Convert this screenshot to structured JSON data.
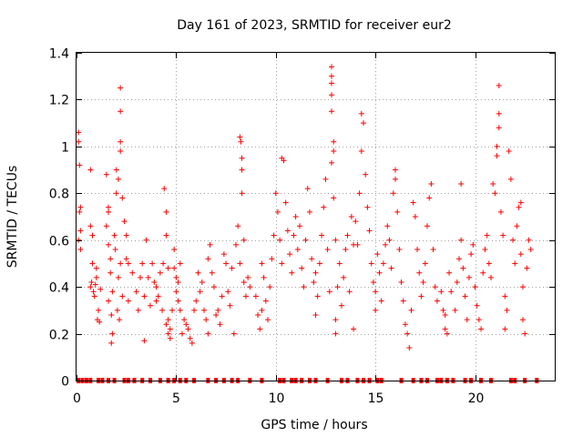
{
  "chart_data": {
    "type": "scatter",
    "title": "Day 161 of 2023, SRMTID for receiver eur2",
    "xlabel": "GPS time / hours",
    "ylabel": "SRMTID / TECUs",
    "xlim": [
      0,
      24
    ],
    "ylim": [
      0,
      1.4
    ],
    "xticks": [
      0,
      5,
      10,
      15,
      20
    ],
    "yticks": [
      0,
      0.2,
      0.4,
      0.6,
      0.8,
      1,
      1.2,
      1.4
    ],
    "grid": true,
    "marker": "+",
    "color": "#ff0000",
    "series": [
      {
        "name": "SRMTID",
        "points": [
          [
            0.1,
            1.06
          ],
          [
            0.1,
            1.02
          ],
          [
            0.15,
            0.92
          ],
          [
            0.2,
            0.74
          ],
          [
            0.15,
            0.72
          ],
          [
            0.1,
            0.6
          ],
          [
            0.2,
            0.56
          ],
          [
            0.2,
            0.64
          ],
          [
            0.7,
            0.9
          ],
          [
            0.7,
            0.66
          ],
          [
            0.8,
            0.62
          ],
          [
            0.8,
            0.5
          ],
          [
            0.75,
            0.42
          ],
          [
            0.7,
            0.4
          ],
          [
            0.85,
            0.38
          ],
          [
            0.9,
            0.36
          ],
          [
            1.0,
            0.48
          ],
          [
            1.1,
            0.3
          ],
          [
            1.05,
            0.26
          ],
          [
            1.15,
            0.25
          ],
          [
            1.0,
            0.44
          ],
          [
            0.95,
            0.41
          ],
          [
            1.2,
            0.39
          ],
          [
            1.5,
            0.88
          ],
          [
            1.6,
            0.74
          ],
          [
            1.6,
            0.72
          ],
          [
            1.5,
            0.66
          ],
          [
            1.6,
            0.58
          ],
          [
            1.7,
            0.52
          ],
          [
            1.7,
            0.46
          ],
          [
            1.8,
            0.38
          ],
          [
            1.6,
            0.34
          ],
          [
            1.75,
            0.28
          ],
          [
            1.8,
            0.2
          ],
          [
            1.75,
            0.16
          ],
          [
            1.9,
            0.62
          ],
          [
            1.95,
            0.56
          ],
          [
            2.0,
            0.9
          ],
          [
            2.1,
            0.86
          ],
          [
            2.0,
            0.8
          ],
          [
            2.2,
            1.25
          ],
          [
            2.2,
            1.15
          ],
          [
            2.2,
            1.02
          ],
          [
            2.2,
            0.98
          ],
          [
            2.2,
            0.5
          ],
          [
            2.1,
            0.44
          ],
          [
            2.3,
            0.36
          ],
          [
            2.05,
            0.3
          ],
          [
            2.15,
            0.26
          ],
          [
            2.3,
            0.78
          ],
          [
            2.4,
            0.68
          ],
          [
            2.5,
            0.62
          ],
          [
            2.5,
            0.52
          ],
          [
            2.6,
            0.5
          ],
          [
            2.6,
            0.34
          ],
          [
            2.8,
            0.46
          ],
          [
            3.0,
            0.38
          ],
          [
            3.1,
            0.3
          ],
          [
            3.2,
            0.44
          ],
          [
            3.3,
            0.5
          ],
          [
            3.4,
            0.36
          ],
          [
            3.4,
            0.17
          ],
          [
            3.5,
            0.6
          ],
          [
            3.6,
            0.44
          ],
          [
            3.7,
            0.32
          ],
          [
            3.8,
            0.5
          ],
          [
            3.9,
            0.42
          ],
          [
            4.0,
            0.4
          ],
          [
            4.0,
            0.34
          ],
          [
            4.1,
            0.36
          ],
          [
            4.2,
            0.46
          ],
          [
            4.3,
            0.3
          ],
          [
            4.35,
            0.5
          ],
          [
            4.4,
            0.82
          ],
          [
            4.5,
            0.72
          ],
          [
            4.5,
            0.62
          ],
          [
            4.6,
            0.48
          ],
          [
            4.6,
            0.26
          ],
          [
            4.5,
            0.24
          ],
          [
            4.6,
            0.2
          ],
          [
            4.7,
            0.18
          ],
          [
            4.7,
            0.22
          ],
          [
            4.8,
            0.3
          ],
          [
            4.9,
            0.56
          ],
          [
            4.9,
            0.48
          ],
          [
            5.0,
            0.44
          ],
          [
            5.0,
            0.38
          ],
          [
            5.1,
            0.42
          ],
          [
            5.1,
            0.34
          ],
          [
            5.2,
            0.5
          ],
          [
            5.2,
            0.3
          ],
          [
            5.3,
            0.2
          ],
          [
            5.4,
            0.26
          ],
          [
            5.5,
            0.24
          ],
          [
            5.6,
            0.22
          ],
          [
            5.7,
            0.18
          ],
          [
            5.8,
            0.16
          ],
          [
            5.9,
            0.3
          ],
          [
            6.0,
            0.34
          ],
          [
            6.1,
            0.46
          ],
          [
            6.2,
            0.38
          ],
          [
            6.3,
            0.42
          ],
          [
            6.4,
            0.3
          ],
          [
            6.5,
            0.26
          ],
          [
            6.6,
            0.2
          ],
          [
            6.6,
            0.52
          ],
          [
            6.7,
            0.58
          ],
          [
            6.8,
            0.46
          ],
          [
            6.9,
            0.4
          ],
          [
            7.0,
            0.28
          ],
          [
            7.1,
            0.3
          ],
          [
            7.2,
            0.24
          ],
          [
            7.3,
            0.36
          ],
          [
            7.4,
            0.54
          ],
          [
            7.5,
            0.5
          ],
          [
            7.6,
            0.38
          ],
          [
            7.7,
            0.32
          ],
          [
            7.8,
            0.48
          ],
          [
            7.9,
            0.2
          ],
          [
            8.0,
            0.58
          ],
          [
            8.1,
            0.66
          ],
          [
            8.2,
            0.5
          ],
          [
            8.2,
            1.04
          ],
          [
            8.25,
            1.02
          ],
          [
            8.3,
            0.95
          ],
          [
            8.3,
            0.9
          ],
          [
            8.3,
            0.8
          ],
          [
            8.4,
            0.6
          ],
          [
            8.4,
            0.42
          ],
          [
            8.5,
            0.36
          ],
          [
            8.6,
            0.44
          ],
          [
            8.7,
            0.4
          ],
          [
            9.0,
            0.36
          ],
          [
            9.1,
            0.28
          ],
          [
            9.2,
            0.22
          ],
          [
            9.3,
            0.3
          ],
          [
            9.3,
            0.5
          ],
          [
            9.4,
            0.44
          ],
          [
            9.5,
            0.34
          ],
          [
            9.6,
            0.26
          ],
          [
            9.7,
            0.4
          ],
          [
            9.8,
            0.52
          ],
          [
            9.9,
            0.62
          ],
          [
            10.0,
            0.8
          ],
          [
            10.1,
            0.72
          ],
          [
            10.2,
            0.6
          ],
          [
            10.3,
            0.5
          ],
          [
            10.3,
            0.95
          ],
          [
            10.4,
            0.94
          ],
          [
            10.5,
            0.76
          ],
          [
            10.6,
            0.64
          ],
          [
            10.7,
            0.54
          ],
          [
            10.8,
            0.46
          ],
          [
            10.9,
            0.62
          ],
          [
            11.0,
            0.7
          ],
          [
            11.1,
            0.56
          ],
          [
            11.2,
            0.66
          ],
          [
            11.3,
            0.48
          ],
          [
            11.4,
            0.4
          ],
          [
            11.5,
            0.6
          ],
          [
            11.6,
            0.82
          ],
          [
            11.7,
            0.72
          ],
          [
            11.8,
            0.52
          ],
          [
            11.9,
            0.42
          ],
          [
            12.0,
            0.46
          ],
          [
            12.0,
            0.28
          ],
          [
            12.1,
            0.36
          ],
          [
            12.2,
            0.5
          ],
          [
            12.3,
            0.62
          ],
          [
            12.4,
            0.74
          ],
          [
            12.5,
            0.86
          ],
          [
            12.6,
            0.56
          ],
          [
            12.7,
            0.38
          ],
          [
            12.8,
            1.34
          ],
          [
            12.8,
            1.3
          ],
          [
            12.8,
            1.27
          ],
          [
            12.8,
            1.22
          ],
          [
            12.8,
            1.15
          ],
          [
            12.8,
            0.93
          ],
          [
            12.9,
            1.02
          ],
          [
            12.9,
            0.98
          ],
          [
            12.9,
            0.78
          ],
          [
            13.0,
            0.6
          ],
          [
            13.0,
            0.26
          ],
          [
            13.0,
            0.2
          ],
          [
            13.1,
            0.4
          ],
          [
            13.2,
            0.5
          ],
          [
            13.3,
            0.32
          ],
          [
            13.4,
            0.44
          ],
          [
            13.5,
            0.56
          ],
          [
            13.6,
            0.62
          ],
          [
            13.7,
            0.38
          ],
          [
            13.8,
            0.7
          ],
          [
            13.9,
            0.58
          ],
          [
            13.9,
            0.22
          ],
          [
            14.0,
            0.68
          ],
          [
            14.1,
            0.58
          ],
          [
            14.2,
            0.8
          ],
          [
            14.3,
            0.98
          ],
          [
            14.3,
            1.14
          ],
          [
            14.4,
            1.1
          ],
          [
            14.5,
            0.88
          ],
          [
            14.6,
            0.74
          ],
          [
            14.7,
            0.64
          ],
          [
            14.8,
            0.5
          ],
          [
            14.9,
            0.42
          ],
          [
            15.0,
            0.38
          ],
          [
            15.0,
            0.3
          ],
          [
            15.1,
            0.54
          ],
          [
            15.2,
            0.46
          ],
          [
            15.3,
            0.34
          ],
          [
            15.4,
            0.5
          ],
          [
            15.5,
            0.58
          ],
          [
            15.6,
            0.66
          ],
          [
            15.7,
            0.6
          ],
          [
            15.8,
            0.48
          ],
          [
            15.9,
            0.8
          ],
          [
            16.0,
            0.86
          ],
          [
            16.0,
            0.9
          ],
          [
            16.1,
            0.72
          ],
          [
            16.2,
            0.56
          ],
          [
            16.3,
            0.42
          ],
          [
            16.4,
            0.34
          ],
          [
            16.5,
            0.24
          ],
          [
            16.6,
            0.2
          ],
          [
            16.7,
            0.14
          ],
          [
            16.8,
            0.3
          ],
          [
            16.9,
            0.76
          ],
          [
            17.0,
            0.7
          ],
          [
            17.1,
            0.56
          ],
          [
            17.2,
            0.46
          ],
          [
            17.3,
            0.36
          ],
          [
            17.4,
            0.42
          ],
          [
            17.5,
            0.5
          ],
          [
            17.6,
            0.66
          ],
          [
            17.7,
            0.78
          ],
          [
            17.8,
            0.84
          ],
          [
            17.9,
            0.56
          ],
          [
            18.0,
            0.4
          ],
          [
            18.1,
            0.34
          ],
          [
            18.3,
            0.38
          ],
          [
            18.4,
            0.3
          ],
          [
            18.5,
            0.28
          ],
          [
            18.5,
            0.22
          ],
          [
            18.6,
            0.2
          ],
          [
            18.7,
            0.46
          ],
          [
            18.8,
            0.38
          ],
          [
            19.0,
            0.3
          ],
          [
            19.1,
            0.42
          ],
          [
            19.2,
            0.52
          ],
          [
            19.3,
            0.84
          ],
          [
            19.3,
            0.6
          ],
          [
            19.4,
            0.48
          ],
          [
            19.5,
            0.36
          ],
          [
            19.6,
            0.26
          ],
          [
            19.7,
            0.44
          ],
          [
            19.8,
            0.54
          ],
          [
            19.9,
            0.58
          ],
          [
            20.0,
            0.4
          ],
          [
            20.1,
            0.32
          ],
          [
            20.2,
            0.26
          ],
          [
            20.3,
            0.22
          ],
          [
            20.4,
            0.46
          ],
          [
            20.5,
            0.56
          ],
          [
            20.6,
            0.62
          ],
          [
            20.7,
            0.5
          ],
          [
            20.8,
            0.44
          ],
          [
            20.9,
            0.84
          ],
          [
            21.0,
            0.8
          ],
          [
            21.1,
            1.0
          ],
          [
            21.1,
            0.96
          ],
          [
            21.2,
            1.26
          ],
          [
            21.2,
            1.14
          ],
          [
            21.2,
            1.08
          ],
          [
            21.3,
            0.72
          ],
          [
            21.4,
            0.62
          ],
          [
            21.5,
            0.36
          ],
          [
            21.5,
            0.22
          ],
          [
            21.6,
            0.3
          ],
          [
            21.7,
            0.98
          ],
          [
            21.8,
            0.86
          ],
          [
            21.9,
            0.6
          ],
          [
            22.0,
            0.5
          ],
          [
            22.1,
            0.66
          ],
          [
            22.2,
            0.74
          ],
          [
            22.3,
            0.76
          ],
          [
            22.3,
            0.54
          ],
          [
            22.4,
            0.4
          ],
          [
            22.4,
            0.26
          ],
          [
            22.5,
            0.2
          ],
          [
            22.6,
            0.48
          ],
          [
            22.7,
            0.6
          ],
          [
            22.8,
            0.56
          ]
        ],
        "zero_points": [
          0.1,
          0.3,
          0.5,
          0.7,
          1.1,
          1.3,
          1.6,
          1.9,
          2.4,
          2.6,
          2.9,
          3.3,
          3.7,
          4.2,
          4.6,
          4.9,
          5.2,
          5.5,
          5.9,
          6.6,
          7.0,
          7.4,
          7.8,
          8.1,
          8.7,
          9.3,
          10.2,
          10.4,
          10.8,
          11.0,
          11.3,
          11.7,
          12.0,
          12.6,
          13.3,
          13.6,
          14.1,
          14.4,
          14.7,
          15.1,
          15.3,
          16.3,
          16.9,
          17.3,
          17.6,
          18.1,
          18.3,
          18.6,
          18.9,
          19.5,
          19.8,
          20.3,
          20.8,
          21.8,
          22.0,
          22.5,
          23.1
        ]
      }
    ]
  }
}
